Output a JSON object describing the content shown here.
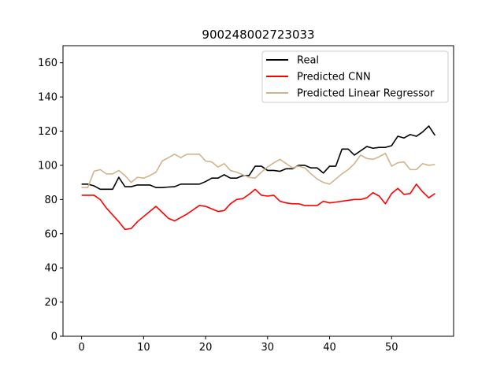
{
  "chart_data": {
    "type": "line",
    "title": "900248002723033",
    "xlabel": "",
    "ylabel": "",
    "xlim": [
      -3,
      60
    ],
    "ylim": [
      0,
      170
    ],
    "xticks": [
      0,
      10,
      20,
      30,
      40,
      50
    ],
    "yticks": [
      0,
      20,
      40,
      60,
      80,
      100,
      120,
      140,
      160
    ],
    "grid": false,
    "legend_placement": "top-right",
    "x": [
      0,
      1,
      2,
      3,
      4,
      5,
      6,
      7,
      8,
      9,
      10,
      11,
      12,
      13,
      14,
      15,
      16,
      17,
      18,
      19,
      20,
      21,
      22,
      23,
      24,
      25,
      26,
      27,
      28,
      29,
      30,
      31,
      32,
      33,
      34,
      35,
      36,
      37,
      38,
      39,
      40,
      41,
      42,
      43,
      44,
      45,
      46,
      47,
      48,
      49,
      50,
      51,
      52,
      53,
      54,
      55,
      56,
      57
    ],
    "series": [
      {
        "name": "Real",
        "color": "#000000",
        "values": [
          89,
          89,
          88,
          86,
          86,
          86,
          93,
          87.5,
          87.5,
          88.5,
          88.5,
          88.5,
          87,
          87,
          87.3,
          87.5,
          89,
          89,
          89,
          89,
          90.5,
          92.5,
          92.5,
          94.5,
          92.5,
          92.5,
          94,
          94,
          99.5,
          99.5,
          97,
          97,
          96.5,
          98,
          98,
          100,
          100,
          98.5,
          98.5,
          95.5,
          99.5,
          99.5,
          109.5,
          109.5,
          106,
          108.5,
          111,
          110,
          110.5,
          110.5,
          111.5,
          117,
          116,
          118,
          117,
          119.5,
          123,
          117.5
        ]
      },
      {
        "name": "Predicted CNN",
        "color": "#ff0000",
        "values": [
          82.5,
          82.5,
          82.5,
          80,
          75,
          71,
          67,
          62.5,
          63,
          67,
          70,
          73,
          76,
          72.5,
          69,
          67.5,
          69.5,
          71.5,
          74,
          76.5,
          76,
          74.5,
          73,
          73.5,
          77.5,
          80,
          80.5,
          83,
          86,
          82.5,
          82,
          82.5,
          79,
          78,
          77.5,
          77.5,
          76.5,
          76.5,
          76.5,
          79,
          78,
          78.5,
          79,
          79.5,
          80,
          80,
          81,
          84,
          82,
          77.5,
          83.5,
          86.5,
          83,
          83.5,
          89,
          84.5,
          81,
          83.5
        ]
      },
      {
        "name": "Predicted Linear Regressor",
        "color": "#d2b48c",
        "values": [
          87,
          87,
          96.5,
          97.5,
          95,
          95,
          97,
          94,
          90,
          93,
          92.5,
          94,
          96,
          102.5,
          104.5,
          106.5,
          104.5,
          106.5,
          106.5,
          106.5,
          102.5,
          102,
          99,
          101,
          97,
          96,
          94.5,
          93,
          92.5,
          96,
          99,
          101.5,
          103.5,
          101,
          98.5,
          99.5,
          98.5,
          95,
          92,
          90,
          89,
          92,
          95,
          97.5,
          101,
          106,
          104,
          103.5,
          105,
          107,
          99.5,
          101.5,
          102,
          97.5,
          97.5,
          101,
          100,
          100.5
        ]
      }
    ]
  }
}
